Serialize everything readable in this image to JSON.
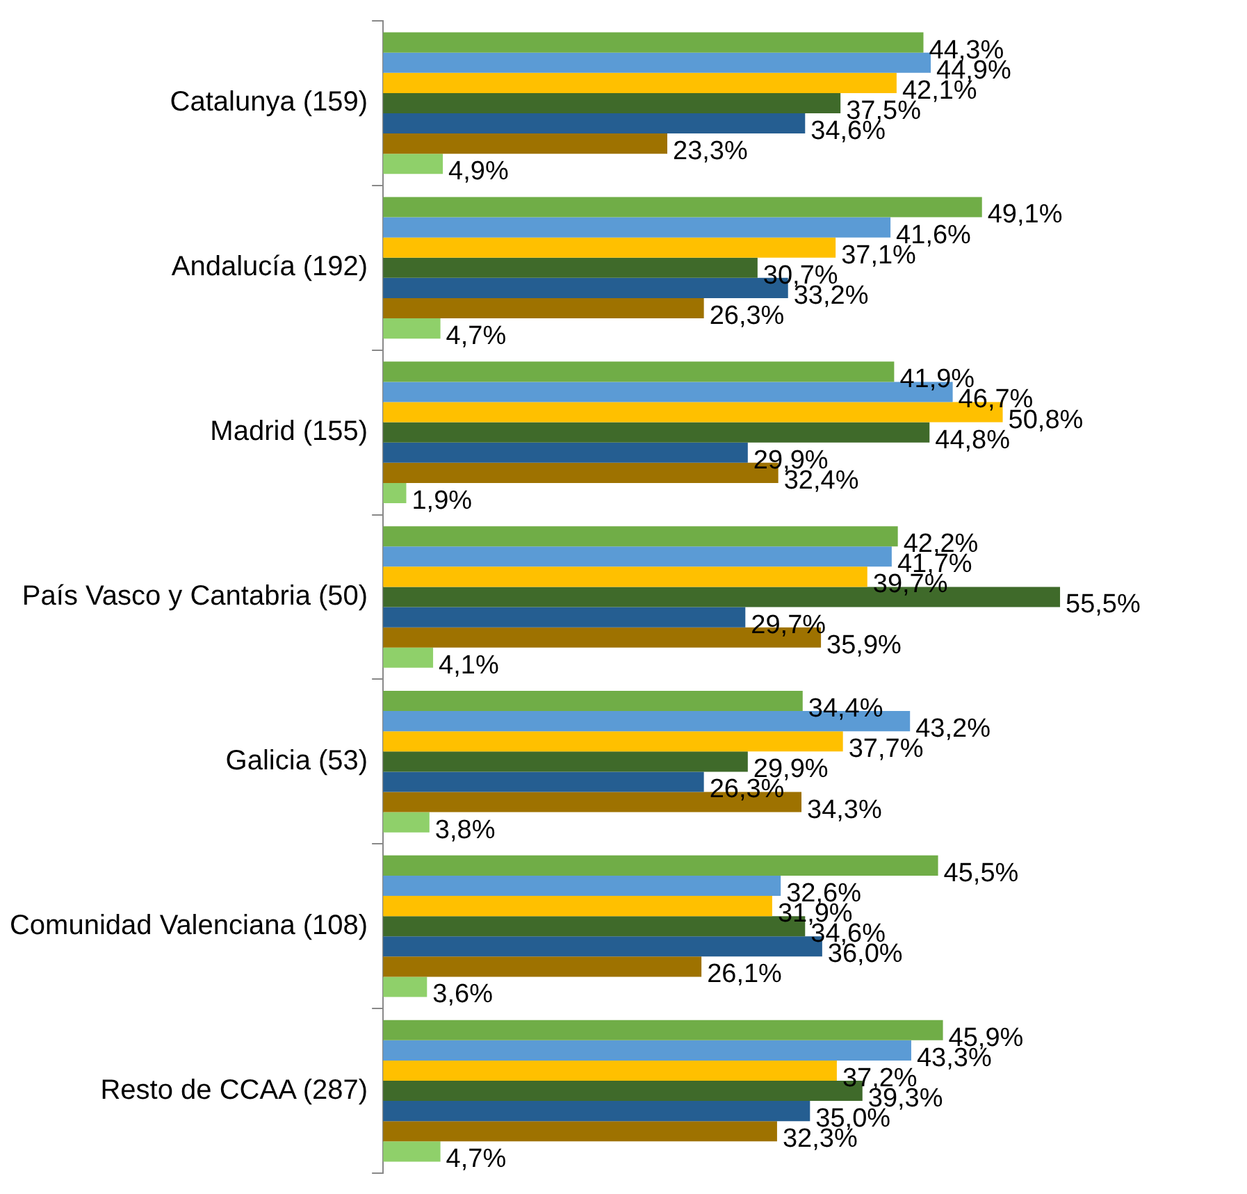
{
  "chart_data": {
    "type": "bar",
    "orientation": "horizontal",
    "legend": false,
    "categories": [
      "Catalunya (159)",
      "Andalucía (192)",
      "Madrid (155)",
      "País Vasco y Cantabria (50)",
      "Galicia (53)",
      "Comunidad Valenciana (108)",
      "Resto de CCAA (287)"
    ],
    "series": [
      {
        "color": "#70ad47",
        "values": [
          44.3,
          49.1,
          41.9,
          42.2,
          34.4,
          45.5,
          45.9
        ],
        "value_labels": [
          "44,3%",
          "49,1%",
          "41,9%",
          "42,2%",
          "34,4%",
          "45,5%",
          "45,9%"
        ]
      },
      {
        "color": "#5b9bd5",
        "values": [
          44.9,
          41.6,
          46.7,
          41.7,
          43.2,
          32.6,
          43.3
        ],
        "value_labels": [
          "44,9%",
          "41,6%",
          "46,7%",
          "41,7%",
          "43,2%",
          "32,6%",
          "43,3%"
        ]
      },
      {
        "color": "#ffc000",
        "values": [
          42.1,
          37.1,
          50.8,
          39.7,
          37.7,
          31.9,
          37.2
        ],
        "value_labels": [
          "42,1%",
          "37,1%",
          "50,8%",
          "39,7%",
          "37,7%",
          "31,9%",
          "37,2%"
        ]
      },
      {
        "color": "#3f6a2a",
        "values": [
          37.5,
          30.7,
          44.8,
          55.5,
          29.9,
          34.6,
          39.3
        ],
        "value_labels": [
          "37,5%",
          "30,7%",
          "44,8%",
          "55,5%",
          "29,9%",
          "34,6%",
          "39,3%"
        ]
      },
      {
        "color": "#255e91",
        "values": [
          34.6,
          33.2,
          29.9,
          29.7,
          26.3,
          36.0,
          35.0
        ],
        "value_labels": [
          "34,6%",
          "33,2%",
          "29,9%",
          "29,7%",
          "26,3%",
          "36,0%",
          "35,0%"
        ]
      },
      {
        "color": "#9e7200",
        "values": [
          23.3,
          26.3,
          32.4,
          35.9,
          34.3,
          26.1,
          32.3
        ],
        "value_labels": [
          "23,3%",
          "26,3%",
          "32,4%",
          "35,9%",
          "34,3%",
          "26,1%",
          "32,3%"
        ]
      },
      {
        "color": "#8fd06a",
        "values": [
          4.9,
          4.7,
          1.9,
          4.1,
          3.8,
          3.6,
          4.7
        ],
        "value_labels": [
          "4,9%",
          "4,7%",
          "1,9%",
          "4,1%",
          "3,8%",
          "3,6%",
          "4,7%"
        ]
      }
    ]
  }
}
